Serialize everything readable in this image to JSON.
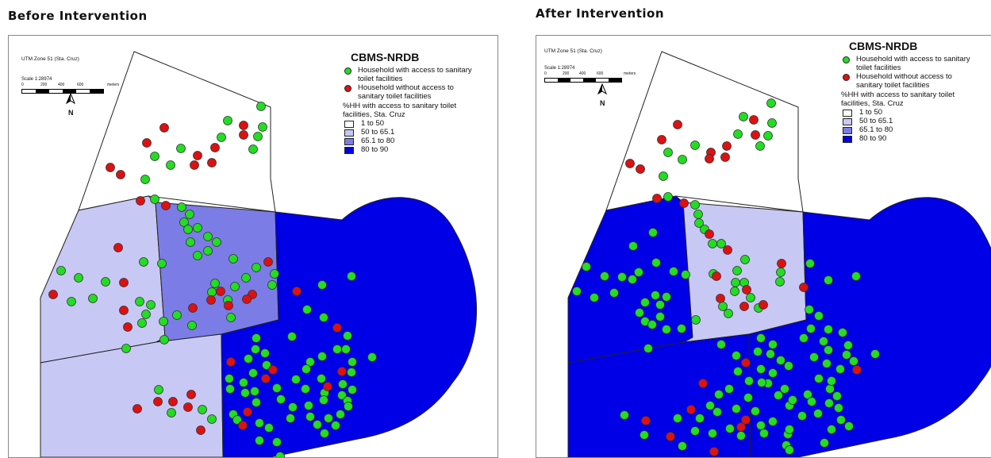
{
  "panels": [
    {
      "title": "Before  Intervention",
      "map_title": "CBMS-NRDB",
      "utm_label": "UTM Zone 51 (Sta. Cruz)",
      "scale_label": "Scale 1:28974",
      "scale_ticks": [
        "0",
        "200",
        "400",
        "600",
        "meters"
      ],
      "north_label": "N",
      "legend": {
        "with_access": "Household with access to sanitary toilet facilities",
        "without_access": "Household without access to sanitary toilet facilities",
        "choropleth_title": "%HH with access to sanitary toilet facilities, Sta. Cruz",
        "classes": [
          "1 to 50",
          "50 to 65.1",
          "65.1 to 80",
          "80 to 90"
        ]
      },
      "zone_classes": {
        "north": 0,
        "west": 1,
        "center": 2,
        "southwest": 1,
        "east": 3
      }
    },
    {
      "title": "After  Intervention",
      "map_title": "CBMS-NRDB",
      "utm_label": "UTM Zone 51 (Sta. Cruz)",
      "scale_label": "Scale 1:28974",
      "scale_ticks": [
        "0",
        "200",
        "400",
        "600",
        "meters"
      ],
      "north_label": "N",
      "legend": {
        "with_access": "Household with access to sanitary toilet facilities",
        "without_access": "Household without access to sanitary toilet facilities",
        "choropleth_title": "%HH with access to sanitary toilet facilities, Sta. Cruz",
        "classes": [
          "1 to 50",
          "50 to 65.1",
          "65.1 to 80",
          "80 to 90"
        ]
      },
      "zone_classes": {
        "north": 0,
        "west": 3,
        "center": 1,
        "southwest": 3,
        "east": 3
      }
    }
  ],
  "colors": {
    "class_fills": [
      "#ffffff",
      "#c8c8f5",
      "#7c7ce6",
      "#0000e6"
    ],
    "with_access": "#22dd22",
    "without_access": "#dd1111",
    "outline": "#222222"
  }
}
